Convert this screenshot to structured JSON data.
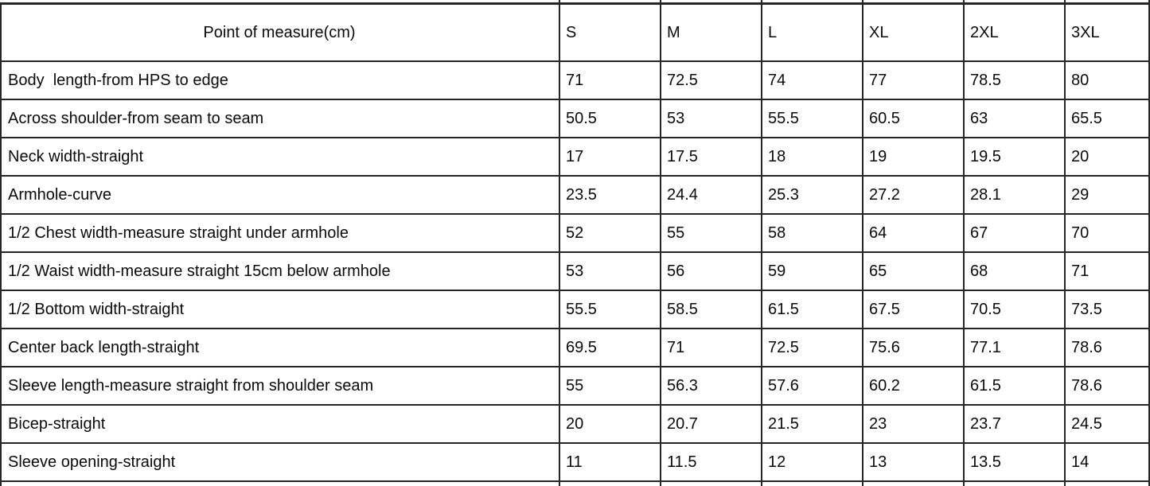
{
  "table": {
    "header": {
      "measure_label": "Point of measure(cm)",
      "sizes": [
        "S",
        "M",
        "L",
        "XL",
        "2XL",
        "3XL"
      ]
    },
    "rows": [
      {
        "label": "Body  length-from HPS to edge",
        "values": [
          "71",
          "72.5",
          "74",
          "77",
          "78.5",
          "80"
        ]
      },
      {
        "label": "Across shoulder-from seam to seam",
        "values": [
          "50.5",
          "53",
          "55.5",
          "60.5",
          "63",
          "65.5"
        ]
      },
      {
        "label": "Neck width-straight",
        "values": [
          "17",
          "17.5",
          "18",
          "19",
          "19.5",
          "20"
        ]
      },
      {
        "label": "Armhole-curve",
        "values": [
          "23.5",
          "24.4",
          "25.3",
          "27.2",
          "28.1",
          "29"
        ]
      },
      {
        "label": "1/2 Chest width-measure straight under armhole",
        "values": [
          "52",
          "55",
          "58",
          "64",
          "67",
          "70"
        ]
      },
      {
        "label": "1/2 Waist width-measure straight 15cm below armhole",
        "values": [
          "53",
          "56",
          "59",
          "65",
          "68",
          "71"
        ]
      },
      {
        "label": "1/2 Bottom width-straight",
        "values": [
          "55.5",
          "58.5",
          "61.5",
          "67.5",
          "70.5",
          "73.5"
        ]
      },
      {
        "label": "Center back length-straight",
        "values": [
          "69.5",
          "71",
          "72.5",
          "75.6",
          "77.1",
          "78.6"
        ]
      },
      {
        "label": "Sleeve length-measure straight from shoulder seam",
        "values": [
          "55",
          "56.3",
          "57.6",
          "60.2",
          "61.5",
          "78.6"
        ]
      },
      {
        "label": "Bicep-straight",
        "values": [
          "20",
          "20.7",
          "21.5",
          "23",
          "23.7",
          "24.5"
        ]
      },
      {
        "label": "Sleeve opening-straight",
        "values": [
          "11",
          "11.5",
          "12",
          "13",
          "13.5",
          "14"
        ]
      }
    ],
    "colors": {
      "border": "#262626",
      "text": "#0a0a0a",
      "background": "#ffffff"
    }
  }
}
